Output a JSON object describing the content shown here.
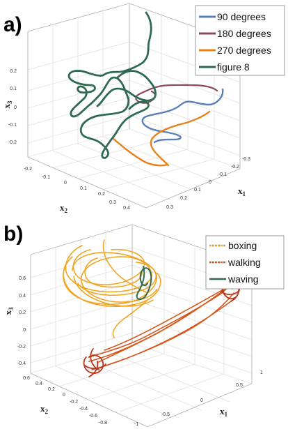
{
  "chart_data": [
    {
      "panel": "a)",
      "type": "line",
      "x_label_base": "x",
      "x_label_sub": "1",
      "y_label_base": "x",
      "y_label_sub": "2",
      "z_label_base": "x",
      "z_label_sub": "3",
      "x_ticks": [
        "0.3",
        "0.2",
        "0.1",
        "0",
        "-0.1",
        "-0.2",
        "-0.3"
      ],
      "y_ticks": [
        "-0.2",
        "-0.1",
        "0",
        "0.1",
        "0.2",
        "0.3",
        "0.4"
      ],
      "z_ticks": [
        "0.2",
        "0.1",
        "0",
        "-0.1",
        "-0.2"
      ],
      "grid": true,
      "legend_placement": "top-right",
      "series": [
        {
          "name": "90 degrees",
          "color": "#5a7fb8"
        },
        {
          "name": "180 degrees",
          "color": "#8a4a5a"
        },
        {
          "name": "270 degrees",
          "color": "#e8811a"
        },
        {
          "name": "figure 8",
          "color": "#2e6a50"
        }
      ]
    },
    {
      "panel": "b)",
      "type": "line",
      "x_label_base": "x",
      "x_label_sub": "1",
      "y_label_base": "x",
      "y_label_sub": "2",
      "z_label_base": "x",
      "z_label_sub": "3",
      "x_ticks": [
        "1",
        "0.5",
        "0",
        "-0.5",
        "-1"
      ],
      "y_ticks": [
        "0.6",
        "0.4",
        "0.2",
        "0",
        "-0.2",
        "-0.4",
        "-0.6",
        "-0.8"
      ],
      "z_ticks": [
        "0.6",
        "0.4",
        "0.2",
        "0",
        "-0.2",
        "-0.4"
      ],
      "grid": true,
      "legend_placement": "top-right",
      "series": [
        {
          "name": "boxing",
          "color": "#f0a41e"
        },
        {
          "name": "walking",
          "color": "#d4561a"
        },
        {
          "name": "waving",
          "color": "#2e6a50"
        }
      ]
    }
  ]
}
